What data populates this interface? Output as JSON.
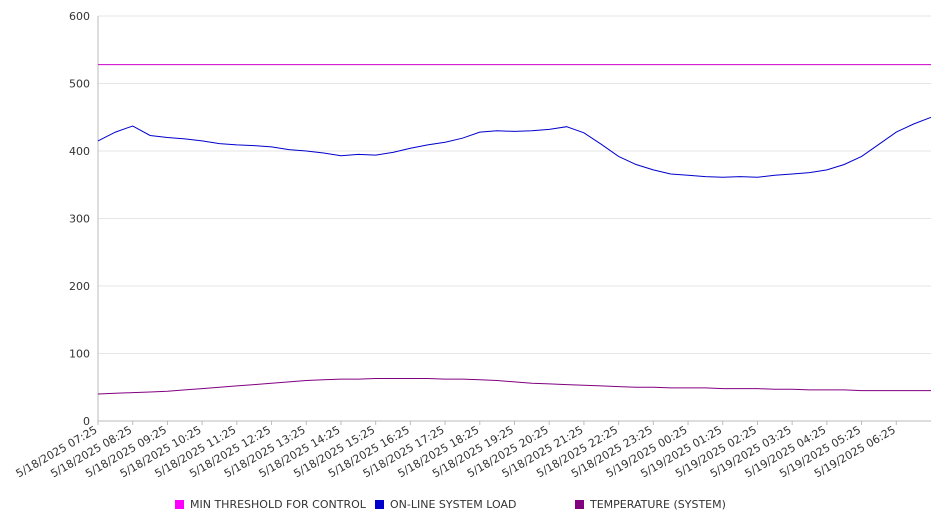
{
  "chart_data": {
    "type": "line",
    "title": "",
    "xlabel": "",
    "ylabel": "",
    "ylim": [
      0,
      600
    ],
    "yticks": [
      0,
      100,
      200,
      300,
      400,
      500,
      600
    ],
    "grid": true,
    "legend_position": "bottom",
    "x_tick_labels": [
      "5/18/2025 07:25",
      "5/18/2025 08:25",
      "5/18/2025 09:25",
      "5/18/2025 10:25",
      "5/18/2025 11:25",
      "5/18/2025 12:25",
      "5/18/2025 13:25",
      "5/18/2025 14:25",
      "5/18/2025 15:25",
      "5/18/2025 16:25",
      "5/18/2025 17:25",
      "5/18/2025 18:25",
      "5/18/2025 19:25",
      "5/18/2025 20:25",
      "5/18/2025 21:25",
      "5/18/2025 22:25",
      "5/18/2025 23:25",
      "5/19/2025 00:25",
      "5/19/2025 01:25",
      "5/19/2025 02:25",
      "5/19/2025 03:25",
      "5/19/2025 04:25",
      "5/19/2025 05:25",
      "5/19/2025 06:25"
    ],
    "x": [
      "5/18/2025 07:25",
      "5/18/2025 07:55",
      "5/18/2025 08:25",
      "5/18/2025 08:55",
      "5/18/2025 09:25",
      "5/18/2025 09:55",
      "5/18/2025 10:25",
      "5/18/2025 10:55",
      "5/18/2025 11:25",
      "5/18/2025 11:55",
      "5/18/2025 12:25",
      "5/18/2025 12:55",
      "5/18/2025 13:25",
      "5/18/2025 13:55",
      "5/18/2025 14:25",
      "5/18/2025 14:55",
      "5/18/2025 15:25",
      "5/18/2025 15:55",
      "5/18/2025 16:25",
      "5/18/2025 16:55",
      "5/18/2025 17:25",
      "5/18/2025 17:55",
      "5/18/2025 18:25",
      "5/18/2025 18:55",
      "5/18/2025 19:25",
      "5/18/2025 19:55",
      "5/18/2025 20:25",
      "5/18/2025 20:55",
      "5/18/2025 21:25",
      "5/18/2025 21:55",
      "5/18/2025 22:25",
      "5/18/2025 22:55",
      "5/18/2025 23:25",
      "5/18/2025 23:55",
      "5/19/2025 00:25",
      "5/19/2025 00:55",
      "5/19/2025 01:25",
      "5/19/2025 01:55",
      "5/19/2025 02:25",
      "5/19/2025 02:55",
      "5/19/2025 03:25",
      "5/19/2025 03:55",
      "5/19/2025 04:25",
      "5/19/2025 04:55",
      "5/19/2025 05:25",
      "5/19/2025 05:55",
      "5/19/2025 06:25",
      "5/19/2025 06:55",
      "5/19/2025 07:25"
    ],
    "series": [
      {
        "name": "MIN THRESHOLD FOR CONTROL",
        "color": "#cc00cc",
        "values": [
          528,
          528,
          528,
          528,
          528,
          528,
          528,
          528,
          528,
          528,
          528,
          528,
          528,
          528,
          528,
          528,
          528,
          528,
          528,
          528,
          528,
          528,
          528,
          528,
          528,
          528,
          528,
          528,
          528,
          528,
          528,
          528,
          528,
          528,
          528,
          528,
          528,
          528,
          528,
          528,
          528,
          528,
          528,
          528,
          528,
          528,
          528,
          528,
          528
        ]
      },
      {
        "name": "ON-LINE SYSTEM LOAD",
        "color": "#0000cc",
        "values": [
          415,
          428,
          437,
          423,
          420,
          418,
          415,
          411,
          409,
          408,
          406,
          402,
          400,
          397,
          393,
          395,
          394,
          398,
          404,
          409,
          413,
          419,
          428,
          430,
          429,
          430,
          432,
          436,
          427,
          410,
          392,
          380,
          372,
          366,
          364,
          362,
          361,
          362,
          361,
          364,
          366,
          368,
          372,
          380,
          392,
          410,
          428,
          440,
          450
        ]
      },
      {
        "name": "TEMPERATURE (SYSTEM)",
        "color": "#800080",
        "values": [
          40,
          41,
          42,
          43,
          44,
          46,
          48,
          50,
          52,
          54,
          56,
          58,
          60,
          61,
          62,
          62,
          63,
          63,
          63,
          63,
          62,
          62,
          61,
          60,
          58,
          56,
          55,
          54,
          53,
          52,
          51,
          50,
          50,
          49,
          49,
          49,
          48,
          48,
          48,
          47,
          47,
          46,
          46,
          46,
          45,
          45,
          45,
          45,
          45
        ]
      }
    ]
  }
}
